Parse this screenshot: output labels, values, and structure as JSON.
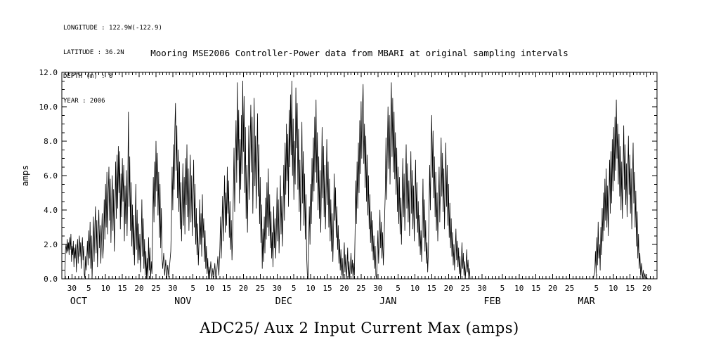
{
  "meta": {
    "lines": [
      "LONGITUDE : 122.9W(-122.9)",
      "LATITUDE : 36.2N",
      "DEPTH (m) : 0",
      "YEAR : 2006"
    ]
  },
  "chart_data": {
    "type": "line",
    "title": "Mooring MSE2006 Controller-Power data from MBARI at original sampling intervals",
    "caption": "ADC25/ Aux 2 Input Current Max (amps)",
    "ylabel": "amps",
    "ylim": [
      0,
      12
    ],
    "y_major_ticks": [
      0,
      2,
      4,
      6,
      8,
      10,
      12
    ],
    "y_tick_labels": [
      "0.0",
      "2.0",
      "4.0",
      "6.0",
      "8.0",
      "10.0",
      "12.0"
    ],
    "y_minor_step": 0.5,
    "x_range_days": [
      0,
      177
    ],
    "x_minor_step": 1,
    "grid": false,
    "legend": "none",
    "line_color": "#000000",
    "background": "#ffffff",
    "x_ticks": [
      {
        "d": 3,
        "label": "30"
      },
      {
        "d": 8,
        "label": "5"
      },
      {
        "d": 13,
        "label": "10"
      },
      {
        "d": 18,
        "label": "15"
      },
      {
        "d": 23,
        "label": "20"
      },
      {
        "d": 28,
        "label": "25"
      },
      {
        "d": 33,
        "label": "30"
      },
      {
        "d": 39,
        "label": "5"
      },
      {
        "d": 44,
        "label": "10"
      },
      {
        "d": 49,
        "label": "15"
      },
      {
        "d": 54,
        "label": "20"
      },
      {
        "d": 59,
        "label": "25"
      },
      {
        "d": 64,
        "label": "30"
      },
      {
        "d": 69,
        "label": "5"
      },
      {
        "d": 74,
        "label": "10"
      },
      {
        "d": 79,
        "label": "15"
      },
      {
        "d": 84,
        "label": "20"
      },
      {
        "d": 89,
        "label": "25"
      },
      {
        "d": 94,
        "label": "30"
      },
      {
        "d": 100,
        "label": "5"
      },
      {
        "d": 105,
        "label": "10"
      },
      {
        "d": 110,
        "label": "15"
      },
      {
        "d": 115,
        "label": "20"
      },
      {
        "d": 120,
        "label": "25"
      },
      {
        "d": 125,
        "label": "30"
      },
      {
        "d": 131,
        "label": "5"
      },
      {
        "d": 136,
        "label": "10"
      },
      {
        "d": 141,
        "label": "15"
      },
      {
        "d": 146,
        "label": "20"
      },
      {
        "d": 151,
        "label": "25"
      },
      {
        "d": 159,
        "label": "5"
      },
      {
        "d": 164,
        "label": "10"
      },
      {
        "d": 169,
        "label": "15"
      },
      {
        "d": 174,
        "label": "20"
      }
    ],
    "months": [
      {
        "d": 4,
        "label": "OCT"
      },
      {
        "d": 35,
        "label": "NOV"
      },
      {
        "d": 65,
        "label": "DEC"
      },
      {
        "d": 96,
        "label": "JAN"
      },
      {
        "d": 127,
        "label": "FEB"
      },
      {
        "d": 155,
        "label": "MAR"
      }
    ],
    "series": [
      {
        "name": "ADC25/ Aux 2 Input Current Max (amps)",
        "units": "amps",
        "segments": [
          {
            "t0": 0.9,
            "dt": 0.18,
            "v": [
              0.0,
              1.7,
              2.0,
              1.5,
              2.3,
              1.6,
              2.1,
              1.4,
              2.4,
              1.7,
              2.6,
              1.0,
              1.9,
              1.4,
              2.2,
              0.7,
              1.8,
              1.2,
              2.0,
              0.4,
              1.6,
              2.3,
              0.9,
              1.9,
              2.5,
              1.3,
              2.1,
              0.6,
              1.8,
              2.4,
              1.1,
              1.9,
              0.3,
              0.05,
              1.3,
              0.5,
              1.0
            ]
          },
          {
            "t0": 7.6,
            "dt": 0.2,
            "v": [
              2.2,
              0.8,
              2.8,
              1.2,
              3.3,
              0.6,
              2.5,
              0.0,
              1.8,
              3.6,
              1.0,
              2.9,
              4.2,
              1.5,
              3.4,
              0.7,
              2.6,
              4.0,
              1.8,
              3.1,
              0.9,
              2.4,
              3.8,
              1.2,
              2.0
            ]
          },
          {
            "t0": 12.6,
            "dt": 0.2,
            "v": [
              4.6,
              2.3,
              5.5,
              3.0,
              6.2,
              2.6,
              4.9,
              6.5,
              3.4,
              5.8,
              2.1,
              4.4,
              6.0,
              2.8,
              5.2,
              1.6,
              3.9
            ]
          },
          {
            "t0": 16.0,
            "dt": 0.2,
            "v": [
              6.8,
              3.5,
              7.2,
              4.1,
              7.7,
              5.0,
              7.4,
              2.9,
              6.1,
              3.6,
              7.0,
              4.5,
              6.6,
              2.2,
              5.4
            ]
          },
          {
            "t0": 19.0,
            "dt": 0.2,
            "v": [
              3.2,
              6.3,
              2.5,
              5.1,
              9.7,
              4.2,
              7.1,
              2.8,
              5.6,
              1.9
            ]
          },
          {
            "t0": 21.0,
            "dt": 0.2,
            "v": [
              4.3,
              1.4,
              3.7,
              0.8,
              2.9,
              5.5,
              1.7,
              4.0,
              0.9,
              3.2,
              1.1,
              2.6,
              0.4,
              2.0,
              4.6,
              1.3,
              3.5,
              0.6,
              2.3,
              0.2,
              1.6,
              0.0,
              1.2,
              0.0,
              2.4,
              0.5,
              1.8,
              0.0,
              1.0,
              0.3
            ]
          },
          {
            "t0": 27.0,
            "dt": 0.2,
            "v": [
              2.8,
              5.9,
              3.3,
              6.8,
              4.2,
              8.0,
              5.1,
              7.3,
              3.7,
              6.2,
              2.4,
              5.5,
              1.8,
              4.1,
              1.2
            ]
          },
          {
            "t0": 30.0,
            "dt": 0.3,
            "v": [
              0.6,
              1.5,
              0.2,
              1.1,
              0.0,
              0.8,
              0.1,
              0.9,
              1.6
            ]
          },
          {
            "t0": 32.6,
            "dt": 0.2,
            "v": [
              3.4,
              6.5,
              4.0,
              7.8,
              5.2,
              8.6,
              10.2,
              6.3,
              8.9,
              4.7,
              7.5,
              3.9,
              6.8,
              2.9,
              5.6,
              2.2,
              4.4
            ]
          },
          {
            "t0": 36.0,
            "dt": 0.2,
            "v": [
              6.7,
              3.1,
              5.9,
              2.6,
              7.0,
              4.3,
              7.8,
              3.6,
              6.4,
              2.8,
              5.3,
              7.2,
              3.3,
              6.0,
              2.5,
              4.8,
              6.9,
              3.0,
              5.5,
              2.0,
              4.1,
              1.4,
              3.2,
              0.8,
              2.1
            ]
          },
          {
            "t0": 41.0,
            "dt": 0.2,
            "v": [
              4.6,
              2.0,
              3.8,
              1.3,
              4.9,
              2.4,
              3.5,
              1.0,
              2.8,
              0.6,
              1.9,
              0.3,
              1.2,
              0.0,
              0.7
            ]
          },
          {
            "t0": 44.0,
            "dt": 0.3,
            "v": [
              0.2,
              1.0,
              0.0,
              0.6,
              0.1,
              0.9,
              0.0,
              0.5,
              1.3,
              0.2
            ]
          },
          {
            "t0": 47.0,
            "dt": 0.2,
            "v": [
              1.8,
              3.6,
              1.2,
              2.9,
              4.8,
              2.2,
              4.1,
              6.0,
              2.7,
              5.0,
              3.1,
              6.5,
              3.8,
              5.7,
              2.4,
              4.5,
              1.7,
              3.4,
              1.1,
              2.6
            ]
          },
          {
            "t0": 51.0,
            "dt": 0.2,
            "v": [
              4.9,
              7.6,
              3.9,
              6.8,
              9.2,
              5.6,
              11.4,
              6.9,
              9.8,
              4.4,
              8.1,
              5.2,
              9.5,
              6.1,
              11.5,
              7.4,
              10.6,
              5.0,
              8.8,
              3.5,
              6.6,
              2.7
            ]
          },
          {
            "t0": 55.4,
            "dt": 0.2,
            "v": [
              5.8,
              8.9,
              4.6,
              7.7,
              10.1,
              6.2,
              9.4,
              3.8,
              7.0,
              10.5,
              5.4,
              8.3,
              4.1,
              6.9,
              9.6,
              4.8,
              7.8,
              3.2,
              5.9,
              2.1,
              4.3,
              0.6,
              2.9,
              1.0,
              3.6,
              1.5,
              4.7,
              2.3,
              5.6,
              3.0,
              6.4,
              2.5,
              4.9,
              1.8,
              3.9,
              1.2,
              2.7,
              0.7
            ]
          },
          {
            "t0": 63.0,
            "dt": 0.2,
            "v": [
              4.2,
              1.8,
              3.5,
              1.2,
              2.8,
              5.3,
              2.2,
              4.6,
              1.5,
              3.3,
              6.0,
              2.6,
              4.8,
              1.9,
              3.7
            ]
          },
          {
            "t0": 66.0,
            "dt": 0.2,
            "v": [
              6.6,
              3.4,
              7.9,
              4.9,
              9.0,
              5.7,
              8.4,
              4.2,
              9.8,
              6.5,
              10.7,
              7.2,
              11.5,
              6.0,
              9.3,
              4.6,
              8.0,
              5.5,
              11.1,
              7.6,
              10.2,
              5.2,
              8.7,
              3.9,
              6.9,
              2.8
            ]
          },
          {
            "t0": 71.2,
            "dt": 0.2,
            "v": [
              5.8,
              9.1,
              4.4,
              7.4,
              3.1,
              6.1,
              2.3,
              4.9,
              1.4,
              0.3,
              0.0,
              1.8,
              4.2,
              2.0,
              5.5,
              3.2,
              7.0,
              4.5,
              8.2,
              5.1,
              9.4,
              6.2,
              10.4,
              5.6,
              8.5
            ]
          },
          {
            "t0": 76.2,
            "dt": 0.2,
            "v": [
              4.0,
              7.1,
              3.5,
              6.3,
              2.7,
              5.4,
              8.8,
              4.7,
              7.7,
              3.6,
              6.6,
              2.9,
              5.2,
              8.1,
              4.3,
              6.8,
              3.0,
              5.8,
              2.2,
              4.6,
              1.6,
              3.8,
              1.0,
              2.9,
              6.1,
              3.4,
              5.3,
              2.4,
              4.2,
              1.7
            ]
          },
          {
            "t0": 82.2,
            "dt": 0.2,
            "v": [
              3.1,
              0.9,
              2.3,
              0.5,
              1.7,
              0.2,
              1.2,
              0.0,
              0.8,
              2.1,
              0.4,
              1.4,
              0.0,
              0.6,
              1.8,
              0.1,
              1.0,
              0.0,
              0.7,
              1.5,
              0.3,
              1.1,
              0.0,
              0.9,
              0.2
            ]
          },
          {
            "t0": 87.2,
            "dt": 0.2,
            "v": [
              2.6,
              5.7,
              3.2,
              6.8,
              4.1,
              7.9,
              5.0,
              9.2,
              6.1,
              10.3,
              7.0,
              9.9,
              11.3,
              6.7,
              9.0,
              5.3,
              8.3,
              4.5,
              7.2,
              3.7,
              6.0,
              2.9,
              4.9,
              2.1,
              3.9
            ]
          },
          {
            "t0": 92.2,
            "dt": 0.2,
            "v": [
              1.6,
              3.4,
              1.1,
              2.5,
              0.6,
              1.9,
              0.2,
              0.0,
              1.3,
              2.8,
              0.9,
              2.2,
              4.0,
              1.8,
              3.3,
              1.2,
              2.7,
              0.8,
              2.0,
              3.6
            ]
          },
          {
            "t0": 96.2,
            "dt": 0.2,
            "v": [
              5.1,
              8.2,
              4.6,
              7.3,
              10.0,
              6.4,
              9.5,
              5.5,
              8.8,
              11.4,
              7.1,
              10.5,
              6.2,
              9.7,
              5.8,
              8.5,
              4.9,
              7.6,
              3.9,
              6.5,
              3.2,
              5.9,
              2.6,
              4.7,
              2.0
            ]
          },
          {
            "t0": 101.2,
            "dt": 0.2,
            "v": [
              4.4,
              7.0,
              3.6,
              6.1,
              2.8,
              5.2,
              7.8,
              4.1,
              6.7,
              3.3,
              5.7,
              2.5,
              4.8,
              7.4,
              3.8,
              6.3,
              2.9,
              5.4,
              2.2,
              4.3,
              6.9,
              3.5,
              5.6,
              2.7,
              4.5,
              1.9,
              3.7,
              1.4,
              2.8,
              1.0
            ]
          },
          {
            "t0": 107.2,
            "dt": 0.2,
            "v": [
              3.0,
              5.8,
              2.4,
              4.6,
              1.6,
              3.4,
              0.9,
              2.1,
              0.4,
              1.5,
              3.9,
              6.6,
              4.0,
              7.5,
              9.5,
              5.9,
              8.6,
              4.7,
              7.1,
              3.6,
              6.2,
              2.8,
              5.0,
              2.2,
              4.1
            ]
          },
          {
            "t0": 112.2,
            "dt": 0.2,
            "v": [
              6.5,
              3.3,
              5.7,
              8.2,
              4.8,
              7.3,
              3.9,
              6.4,
              2.9,
              5.3,
              7.9,
              4.2,
              6.6,
              3.1,
              5.5,
              2.4,
              4.4,
              1.8,
              3.5,
              1.3,
              2.7,
              0.8,
              2.0,
              0.5,
              1.6
            ]
          },
          {
            "t0": 117.2,
            "dt": 0.2,
            "v": [
              2.9,
              1.1,
              2.2,
              0.7,
              1.8,
              0.3,
              1.3,
              0.0,
              0.9,
              2.1,
              0.6,
              1.5,
              0.2,
              1.0,
              0.0,
              0.7,
              1.7,
              0.4,
              1.1,
              0.1,
              0.6,
              0.0
            ]
          },
          {
            "t0": 122.0,
            "dt": 4.0,
            "v": [
              0.0,
              0.0,
              0.0,
              0.0,
              0.0,
              0.0,
              0.0,
              0.0,
              0.0,
              0.0
            ]
          },
          {
            "t0": 158.5,
            "dt": 0.2,
            "v": [
              0.4,
              1.6,
              0.3,
              2.4,
              0.8,
              3.3,
              1.2,
              2.0,
              0.5,
              3.0,
              1.4,
              4.1,
              2.2,
              5.0,
              2.8,
              5.8,
              3.4,
              6.4,
              3.0,
              5.4,
              2.5,
              4.6
            ]
          },
          {
            "t0": 162.9,
            "dt": 0.2,
            "v": [
              6.9,
              3.8,
              7.4,
              4.4,
              8.1,
              5.1,
              8.8,
              5.7,
              9.4,
              6.3,
              10.4,
              7.0,
              9.0,
              5.5,
              8.4,
              4.8,
              7.7,
              4.0,
              6.8,
              3.5,
              6.0,
              8.9,
              5.2,
              7.8,
              4.3
            ]
          },
          {
            "t0": 167.9,
            "dt": 0.2,
            "v": [
              6.7,
              3.6,
              6.1,
              8.3,
              4.9,
              7.2,
              3.8,
              6.4,
              2.9,
              5.5,
              7.9,
              4.4,
              6.2,
              3.0,
              5.1,
              1.9,
              3.9,
              1.2,
              2.6,
              0.6
            ]
          },
          {
            "t0": 171.9,
            "dt": 0.25,
            "v": [
              1.5,
              0.2,
              0.9,
              0.0,
              0.5,
              0.0,
              0.3,
              0.0,
              0.1,
              0.0
            ]
          }
        ]
      }
    ]
  }
}
